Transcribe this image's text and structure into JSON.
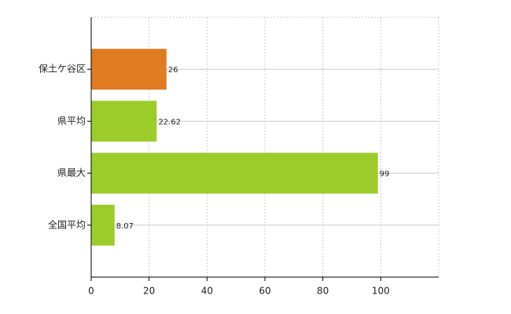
{
  "chart_data": {
    "type": "bar",
    "orientation": "horizontal",
    "categories": [
      "保土ケ谷区",
      "県平均",
      "県最大",
      "全国平均"
    ],
    "values": [
      26,
      22.62,
      99,
      8.07
    ],
    "colors": [
      "#e07b22",
      "#9ccc2a",
      "#9ccc2a",
      "#9ccc2a"
    ],
    "xlim": [
      0,
      120
    ],
    "xticks": [
      0,
      20,
      40,
      60,
      80,
      100
    ],
    "grid": true
  }
}
